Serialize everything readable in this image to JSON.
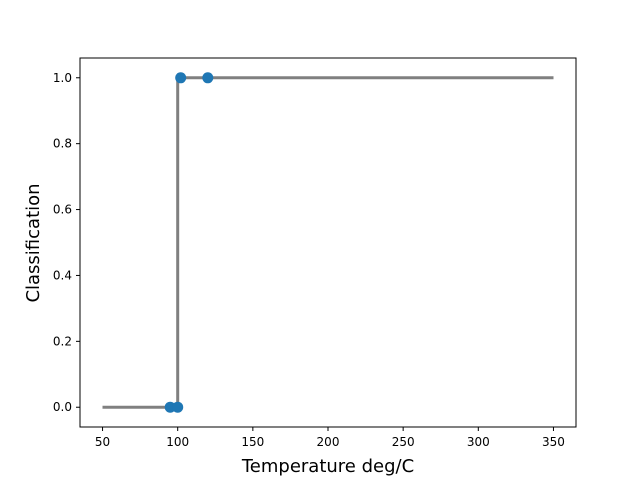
{
  "chart_data": {
    "type": "line",
    "title": "",
    "xlabel": "Temperature deg/C",
    "ylabel": "Classification",
    "xlim": [
      35,
      365
    ],
    "ylim": [
      -0.06,
      1.06
    ],
    "xticks": [
      50,
      100,
      150,
      200,
      250,
      300,
      350
    ],
    "yticks": [
      0.0,
      0.2,
      0.4,
      0.6,
      0.8,
      1.0
    ],
    "ytick_format": 1,
    "grid": false,
    "legend": "none",
    "colors": {
      "line": "#808080",
      "points": "#1f77b4"
    },
    "series": [
      {
        "kind": "line",
        "x": [
          50,
          100,
          100,
          350
        ],
        "y": [
          0,
          0,
          1,
          1
        ]
      },
      {
        "kind": "scatter",
        "x": [
          95,
          100,
          102,
          120
        ],
        "y": [
          0,
          0,
          1,
          1
        ]
      }
    ]
  }
}
